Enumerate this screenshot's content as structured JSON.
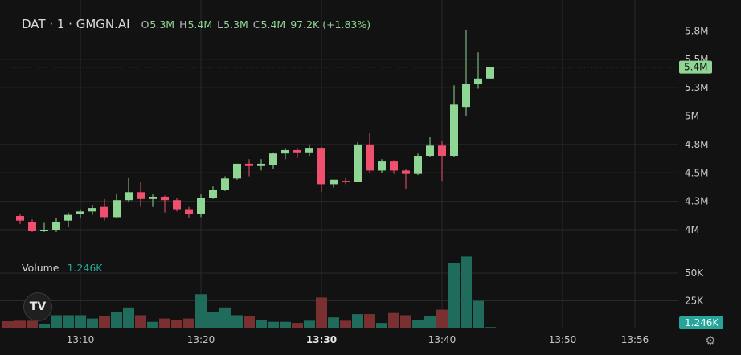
{
  "legend": {
    "symbol": "DAT · 1 · GMGN.AI",
    "open_label": "O",
    "open": "5.3M",
    "high_label": "H",
    "high": "5.4M",
    "low_label": "L",
    "low": "5.3M",
    "close_label": "C",
    "close": "5.4M",
    "change": "97.2K (+1.83%)"
  },
  "volume_legend": {
    "label": "Volume",
    "value": "1.246K"
  },
  "last_price_label": "5.4M",
  "last_volume_label": "1.246K",
  "logo_text": "TV",
  "colors": {
    "background": "#121212",
    "up": "#8fd694",
    "down": "#f0506e",
    "volume_up": "#1f6b5c",
    "volume_down": "#7a3030",
    "accent": "#26a69a"
  },
  "chart_data": [
    {
      "type": "candlestick",
      "title": "DAT · 1 · GMGN.AI",
      "y_tick_labels": [
        "4M",
        "4.3M",
        "4.5M",
        "4.8M",
        "5M",
        "5.3M",
        "5.5M",
        "5.8M"
      ],
      "y_ticks": [
        4.0,
        4.25,
        4.5,
        4.75,
        5.0,
        5.25,
        5.5,
        5.75
      ],
      "ylim": [
        3.7,
        5.9
      ],
      "x_tick_labels": [
        "13:10",
        "13:20",
        "13:30",
        "13:40",
        "13:50",
        "13:56"
      ],
      "x_tick_bold": [
        "13:30"
      ],
      "x_tick_minutes": [
        10,
        20,
        30,
        40,
        50,
        56
      ],
      "x_unit": "minutes after 13:00",
      "last_price": 5.43,
      "candles": [
        {
          "t": 5,
          "o": 4.12,
          "h": 4.14,
          "l": 4.05,
          "c": 4.08
        },
        {
          "t": 6,
          "o": 4.07,
          "h": 4.09,
          "l": 3.98,
          "c": 3.99
        },
        {
          "t": 7,
          "o": 4.0,
          "h": 4.06,
          "l": 3.98,
          "c": 4.0
        },
        {
          "t": 8,
          "o": 4.0,
          "h": 4.1,
          "l": 3.98,
          "c": 4.07
        },
        {
          "t": 9,
          "o": 4.08,
          "h": 4.15,
          "l": 4.02,
          "c": 4.13
        },
        {
          "t": 10,
          "o": 4.14,
          "h": 4.18,
          "l": 4.1,
          "c": 4.16
        },
        {
          "t": 11,
          "o": 4.16,
          "h": 4.22,
          "l": 4.13,
          "c": 4.19
        },
        {
          "t": 12,
          "o": 4.2,
          "h": 4.27,
          "l": 4.08,
          "c": 4.11
        },
        {
          "t": 13,
          "o": 4.11,
          "h": 4.32,
          "l": 4.1,
          "c": 4.26
        },
        {
          "t": 14,
          "o": 4.26,
          "h": 4.46,
          "l": 4.24,
          "c": 4.33
        },
        {
          "t": 15,
          "o": 4.33,
          "h": 4.42,
          "l": 4.2,
          "c": 4.27
        },
        {
          "t": 16,
          "o": 4.27,
          "h": 4.31,
          "l": 4.2,
          "c": 4.29
        },
        {
          "t": 17,
          "o": 4.29,
          "h": 4.3,
          "l": 4.15,
          "c": 4.26
        },
        {
          "t": 18,
          "o": 4.26,
          "h": 4.28,
          "l": 4.16,
          "c": 4.18
        },
        {
          "t": 19,
          "o": 4.18,
          "h": 4.2,
          "l": 4.1,
          "c": 4.14
        },
        {
          "t": 20,
          "o": 4.14,
          "h": 4.31,
          "l": 4.11,
          "c": 4.28
        },
        {
          "t": 21,
          "o": 4.28,
          "h": 4.38,
          "l": 4.27,
          "c": 4.35
        },
        {
          "t": 22,
          "o": 4.35,
          "h": 4.47,
          "l": 4.34,
          "c": 4.45
        },
        {
          "t": 23,
          "o": 4.45,
          "h": 4.58,
          "l": 4.44,
          "c": 4.58
        },
        {
          "t": 24,
          "o": 4.58,
          "h": 4.62,
          "l": 4.47,
          "c": 4.56
        },
        {
          "t": 25,
          "o": 4.56,
          "h": 4.62,
          "l": 4.52,
          "c": 4.58
        },
        {
          "t": 26,
          "o": 4.57,
          "h": 4.68,
          "l": 4.53,
          "c": 4.67
        },
        {
          "t": 27,
          "o": 4.67,
          "h": 4.72,
          "l": 4.62,
          "c": 4.7
        },
        {
          "t": 28,
          "o": 4.7,
          "h": 4.72,
          "l": 4.63,
          "c": 4.68
        },
        {
          "t": 29,
          "o": 4.68,
          "h": 4.75,
          "l": 4.65,
          "c": 4.72
        },
        {
          "t": 30,
          "o": 4.72,
          "h": 4.73,
          "l": 4.33,
          "c": 4.4
        },
        {
          "t": 31,
          "o": 4.4,
          "h": 4.44,
          "l": 4.37,
          "c": 4.44
        },
        {
          "t": 32,
          "o": 4.43,
          "h": 4.46,
          "l": 4.4,
          "c": 4.42
        },
        {
          "t": 33,
          "o": 4.42,
          "h": 4.77,
          "l": 4.42,
          "c": 4.75
        },
        {
          "t": 34,
          "o": 4.75,
          "h": 4.85,
          "l": 4.5,
          "c": 4.52
        },
        {
          "t": 35,
          "o": 4.52,
          "h": 4.62,
          "l": 4.5,
          "c": 4.6
        },
        {
          "t": 36,
          "o": 4.6,
          "h": 4.61,
          "l": 4.49,
          "c": 4.52
        },
        {
          "t": 37,
          "o": 4.52,
          "h": 4.53,
          "l": 4.36,
          "c": 4.49
        },
        {
          "t": 38,
          "o": 4.49,
          "h": 4.67,
          "l": 4.48,
          "c": 4.65
        },
        {
          "t": 39,
          "o": 4.65,
          "h": 4.82,
          "l": 4.64,
          "c": 4.74
        },
        {
          "t": 40,
          "o": 4.74,
          "h": 4.78,
          "l": 4.43,
          "c": 4.65
        },
        {
          "t": 41,
          "o": 4.65,
          "h": 5.27,
          "l": 4.64,
          "c": 5.1
        },
        {
          "t": 42,
          "o": 5.08,
          "h": 5.76,
          "l": 5.0,
          "c": 5.28
        },
        {
          "t": 43,
          "o": 5.28,
          "h": 5.56,
          "l": 5.24,
          "c": 5.33
        },
        {
          "t": 44,
          "o": 5.33,
          "h": 5.43,
          "l": 5.33,
          "c": 5.43
        }
      ]
    },
    {
      "type": "bar",
      "title": "Volume",
      "y_tick_labels": [
        "25K",
        "50K"
      ],
      "y_ticks": [
        25000,
        50000
      ],
      "ylim": [
        0,
        66000
      ],
      "bars": [
        {
          "t": 4,
          "v": 6500,
          "up": false
        },
        {
          "t": 5,
          "v": 7000,
          "up": false
        },
        {
          "t": 6,
          "v": 7000,
          "up": false
        },
        {
          "t": 7,
          "v": 4000,
          "up": true
        },
        {
          "t": 8,
          "v": 12000,
          "up": true
        },
        {
          "t": 9,
          "v": 12000,
          "up": true
        },
        {
          "t": 10,
          "v": 12000,
          "up": true
        },
        {
          "t": 11,
          "v": 9000,
          "up": true
        },
        {
          "t": 12,
          "v": 11000,
          "up": false
        },
        {
          "t": 13,
          "v": 15000,
          "up": true
        },
        {
          "t": 14,
          "v": 19000,
          "up": true
        },
        {
          "t": 15,
          "v": 12000,
          "up": false
        },
        {
          "t": 16,
          "v": 6000,
          "up": true
        },
        {
          "t": 17,
          "v": 9000,
          "up": false
        },
        {
          "t": 18,
          "v": 8000,
          "up": false
        },
        {
          "t": 19,
          "v": 9000,
          "up": false
        },
        {
          "t": 20,
          "v": 31000,
          "up": true
        },
        {
          "t": 21,
          "v": 15000,
          "up": true
        },
        {
          "t": 22,
          "v": 19000,
          "up": true
        },
        {
          "t": 23,
          "v": 12000,
          "up": true
        },
        {
          "t": 24,
          "v": 11000,
          "up": false
        },
        {
          "t": 25,
          "v": 8000,
          "up": true
        },
        {
          "t": 26,
          "v": 6000,
          "up": true
        },
        {
          "t": 27,
          "v": 6000,
          "up": true
        },
        {
          "t": 28,
          "v": 5000,
          "up": false
        },
        {
          "t": 29,
          "v": 7000,
          "up": true
        },
        {
          "t": 30,
          "v": 28000,
          "up": false
        },
        {
          "t": 31,
          "v": 10000,
          "up": true
        },
        {
          "t": 32,
          "v": 7000,
          "up": false
        },
        {
          "t": 33,
          "v": 13000,
          "up": true
        },
        {
          "t": 34,
          "v": 13000,
          "up": false
        },
        {
          "t": 35,
          "v": 5000,
          "up": true
        },
        {
          "t": 36,
          "v": 14000,
          "up": false
        },
        {
          "t": 37,
          "v": 12000,
          "up": false
        },
        {
          "t": 38,
          "v": 8000,
          "up": true
        },
        {
          "t": 39,
          "v": 11000,
          "up": true
        },
        {
          "t": 40,
          "v": 17000,
          "up": false
        },
        {
          "t": 41,
          "v": 59000,
          "up": true
        },
        {
          "t": 42,
          "v": 65000,
          "up": true
        },
        {
          "t": 43,
          "v": 25000,
          "up": true
        },
        {
          "t": 44,
          "v": 1246,
          "up": true
        }
      ]
    }
  ]
}
